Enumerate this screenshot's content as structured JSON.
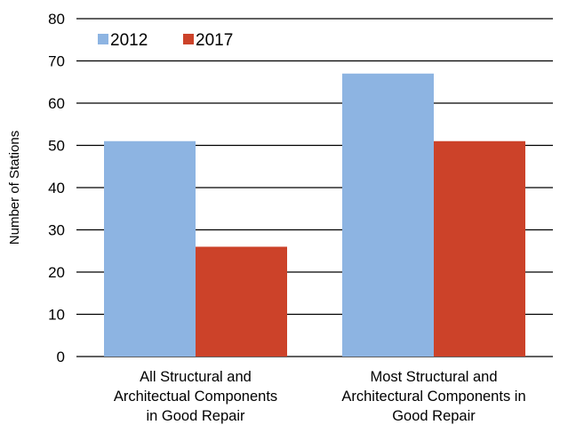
{
  "chart_data": {
    "type": "bar",
    "ylabel": "Number of Stations",
    "ylim": [
      0,
      80
    ],
    "yticks": [
      0,
      10,
      20,
      30,
      40,
      50,
      60,
      70,
      80
    ],
    "grid": true,
    "legend_position": "top-left",
    "categories": [
      [
        "All Structural and",
        "Architectual Components",
        "in Good Repair"
      ],
      [
        "Most Structural and",
        "Architectural Components in",
        "Good Repair"
      ]
    ],
    "series": [
      {
        "name": "2012",
        "values": [
          51,
          67
        ],
        "color": "#8DB4E2"
      },
      {
        "name": "2017",
        "values": [
          26,
          51
        ],
        "color": "#CC4229"
      }
    ]
  }
}
